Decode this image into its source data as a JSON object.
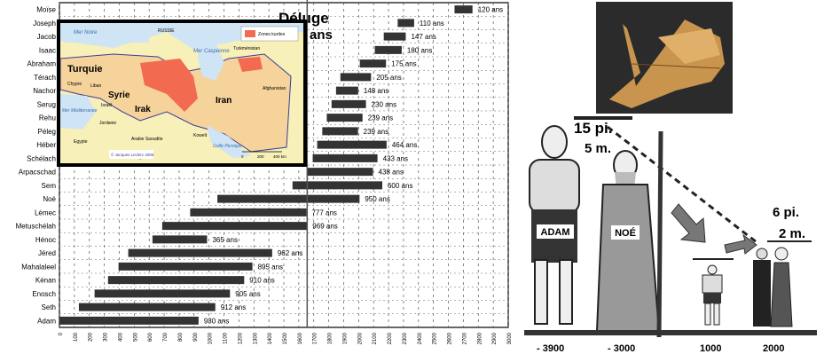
{
  "chart_data": {
    "type": "bar",
    "orientation": "horizontal-range",
    "title": "",
    "annotation": {
      "label": "Déluge",
      "sublabel": "ans",
      "x": 1656
    },
    "xlim": [
      0,
      3000
    ],
    "xticks": [
      0,
      100,
      200,
      300,
      400,
      500,
      600,
      700,
      800,
      900,
      1000,
      1100,
      1200,
      1300,
      1400,
      1500,
      1600,
      1700,
      1800,
      1900,
      2000,
      2100,
      2200,
      2300,
      2400,
      2500,
      2600,
      2700,
      2800,
      2900,
      3000
    ],
    "grid": true,
    "bars": [
      {
        "name": "Moïse",
        "start": 2641,
        "end": 2761,
        "label": "120 ans"
      },
      {
        "name": "Joseph",
        "start": 2261,
        "end": 2371,
        "label": "110 ans"
      },
      {
        "name": "Jacob",
        "start": 2168,
        "end": 2315,
        "label": "147 ans"
      },
      {
        "name": "Isaac",
        "start": 2108,
        "end": 2288,
        "label": "180 ans"
      },
      {
        "name": "Abraham",
        "start": 2008,
        "end": 2183,
        "label": "175 ans"
      },
      {
        "name": "Térach",
        "start": 1878,
        "end": 2083,
        "label": "205 ans"
      },
      {
        "name": "Nachor",
        "start": 1849,
        "end": 1997,
        "label": "148 ans"
      },
      {
        "name": "Serug",
        "start": 1819,
        "end": 2049,
        "label": "230 ans"
      },
      {
        "name": "Rehu",
        "start": 1787,
        "end": 2026,
        "label": "239 ans"
      },
      {
        "name": "Péleg",
        "start": 1757,
        "end": 1996,
        "label": "239 ans"
      },
      {
        "name": "Héber",
        "start": 1723,
        "end": 2187,
        "label": "464 ans"
      },
      {
        "name": "Schélach",
        "start": 1693,
        "end": 2126,
        "label": "433 ans"
      },
      {
        "name": "Arpacschad",
        "start": 1658,
        "end": 2096,
        "label": "438 ans"
      },
      {
        "name": "Sem",
        "start": 1558,
        "end": 2158,
        "label": "600 ans"
      },
      {
        "name": "Noé",
        "start": 1056,
        "end": 2006,
        "label": "950 ans"
      },
      {
        "name": "Lémec",
        "start": 874,
        "end": 1651,
        "label": "777 ans"
      },
      {
        "name": "Metuschélah",
        "start": 687,
        "end": 1656,
        "label": "969 ans"
      },
      {
        "name": "Hénoc",
        "start": 622,
        "end": 987,
        "label": "365 ans"
      },
      {
        "name": "Jéred",
        "start": 460,
        "end": 1422,
        "label": "962 ans"
      },
      {
        "name": "Mahalaleel",
        "start": 395,
        "end": 1290,
        "label": "895 ans"
      },
      {
        "name": "Kénan",
        "start": 325,
        "end": 1235,
        "label": "910 ans"
      },
      {
        "name": "Enosch",
        "start": 235,
        "end": 1140,
        "label": "905 ans"
      },
      {
        "name": "Seth",
        "start": 130,
        "end": 1042,
        "label": "912 ans"
      },
      {
        "name": "Adam",
        "start": 0,
        "end": 930,
        "label": "930 ans"
      }
    ],
    "bar_color": "#333333"
  },
  "map": {
    "countries": [
      "Turquie",
      "Syrie",
      "Irak",
      "Iran"
    ],
    "seas": [
      "Mer Noire",
      "Mer Caspienne",
      "Mer Méditerranée",
      "Golfe Persique",
      "Mer Rouge"
    ],
    "others": [
      "RUSSIE",
      "Arabie Saoudite",
      "Egypte",
      "Turkménistan",
      "Afghanistan",
      "Koweït",
      "Chypre",
      "Liban",
      "Israël",
      "Jordanie"
    ],
    "legend": "Zones kurdes",
    "credit": "© Jacques Leclerc 2006",
    "scale": [
      "0",
      "200",
      "400 km"
    ],
    "colors": {
      "land": "#f7f0b8",
      "focus": "#f5d39a",
      "kurd": "#f26a4f",
      "water": "#cfe4f5"
    }
  },
  "illustration": {
    "tall_height_ft": "15 pi.",
    "tall_height_m": "5 m.",
    "short_height_ft": "6 pi.",
    "short_height_m": "2 m.",
    "figures": [
      "ADAM",
      "NOÉ"
    ],
    "years": [
      "- 3900",
      "- 3000",
      "1000",
      "2000"
    ]
  }
}
